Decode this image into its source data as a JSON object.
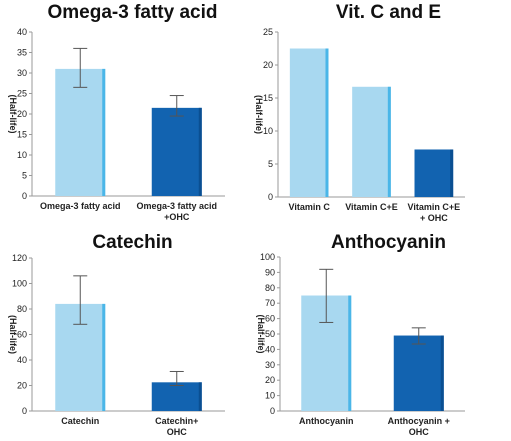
{
  "colors": {
    "light_bar": "#a8d8f0",
    "light_edge": "#4ab6e8",
    "dark_bar": "#1263b0",
    "dark_edge": "#0a4f92",
    "axis": "#9a9a9a",
    "grid": "#bdbdbd",
    "error": "#555555"
  },
  "chart_data": [
    {
      "type": "bar",
      "title": "Omega-3 fatty acid",
      "ylabel": "(Half-life)",
      "ylim": [
        0,
        40
      ],
      "yticks": [
        0,
        5,
        10,
        15,
        20,
        25,
        30,
        35,
        40
      ],
      "categories": [
        [
          "Omega-3 fatty acid"
        ],
        [
          "Omega-3 fatty acid",
          "+OHC"
        ]
      ],
      "values": [
        31,
        21.5
      ],
      "errors": [
        [
          26.5,
          36
        ],
        [
          19.5,
          24.5
        ]
      ],
      "bar_styles": [
        "light",
        "dark"
      ],
      "grid": false
    },
    {
      "type": "bar",
      "title": "Vit. C and E",
      "ylabel": "(Half-life)",
      "ylim": [
        0,
        25
      ],
      "yticks": [
        0,
        5,
        10,
        15,
        20,
        25
      ],
      "categories": [
        [
          "Vitamin C"
        ],
        [
          "Vitamin C+E"
        ],
        [
          "Vitamin C+E",
          "+ OHC"
        ]
      ],
      "values": [
        22.5,
        16.7,
        7.2
      ],
      "errors": [
        null,
        null,
        null
      ],
      "bar_styles": [
        "light",
        "light",
        "dark"
      ],
      "grid": false
    },
    {
      "type": "bar",
      "title": "Catechin",
      "ylabel": "(Half-life)",
      "ylim": [
        0,
        120
      ],
      "yticks": [
        0,
        20,
        40,
        60,
        80,
        100,
        120
      ],
      "categories": [
        [
          "Catechin"
        ],
        [
          "Catechin+",
          "OHC"
        ]
      ],
      "values": [
        84,
        22.5
      ],
      "errors": [
        [
          68,
          106
        ],
        [
          20,
          31
        ]
      ],
      "bar_styles": [
        "light",
        "dark"
      ],
      "grid": false
    },
    {
      "type": "bar",
      "title": "Anthocyanin",
      "ylabel": "(Half-life)",
      "ylim": [
        0,
        100
      ],
      "yticks": [
        0,
        10,
        20,
        30,
        40,
        50,
        60,
        70,
        80,
        90,
        100
      ],
      "categories": [
        [
          "Anthocyanin"
        ],
        [
          "Anthocyanin +",
          "OHC"
        ]
      ],
      "values": [
        75,
        49
      ],
      "errors": [
        [
          57.5,
          92
        ],
        [
          43.5,
          54
        ]
      ],
      "bar_styles": [
        "light",
        "dark"
      ],
      "grid": false
    }
  ]
}
